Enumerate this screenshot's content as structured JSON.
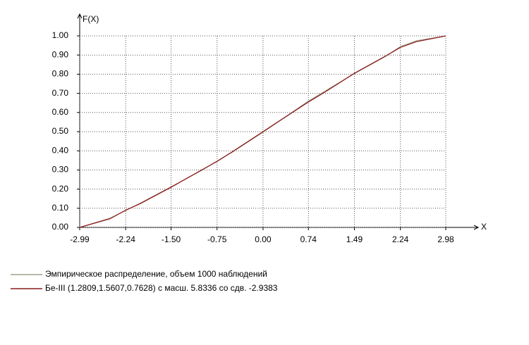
{
  "chart_data": {
    "type": "line",
    "ylabel": "F(X)",
    "xlabel": "X",
    "x": [
      -2.99,
      -2.5,
      -2.24,
      -2,
      -1.5,
      -1,
      -0.75,
      -0.5,
      0,
      0.5,
      0.74,
      1,
      1.49,
      2,
      2.24,
      2.5,
      2.98
    ],
    "series": [
      {
        "name": "Эмпирическое распределение, объем 1000 наблюдений",
        "color": "#9aa38c",
        "values": [
          0,
          0.048,
          0.088,
          0.127,
          0.212,
          0.298,
          0.347,
          0.393,
          0.497,
          0.607,
          0.66,
          0.71,
          0.803,
          0.893,
          0.945,
          0.975,
          1.0
        ]
      },
      {
        "name": "Бе-III (1.2809,1.5607,0.7628) с масш. 5.8336 со сдв. -2.9383",
        "color": "#8b1a1a",
        "values": [
          0,
          0.045,
          0.09,
          0.125,
          0.21,
          0.3,
          0.345,
          0.395,
          0.5,
          0.605,
          0.655,
          0.705,
          0.805,
          0.895,
          0.94,
          0.97,
          1.0
        ]
      }
    ],
    "xlim": [
      -2.99,
      2.98
    ],
    "xticks": [
      -2.99,
      -2.24,
      {
        "value": -1.5,
        "label": "-1.50"
      },
      -0.75,
      {
        "value": 0,
        "label": "0.00"
      },
      0.74,
      1.49,
      2.24,
      2.98
    ],
    "ylim": [
      0,
      1
    ],
    "yticks": [
      {
        "value": 0,
        "label": "0.00"
      },
      {
        "value": 0.1,
        "label": "0.10"
      },
      {
        "value": 0.2,
        "label": "0.20"
      },
      {
        "value": 0.3,
        "label": "0.30"
      },
      {
        "value": 0.4,
        "label": "0.40"
      },
      {
        "value": 0.5,
        "label": "0.50"
      },
      {
        "value": 0.6,
        "label": "0.60"
      },
      {
        "value": 0.7,
        "label": "0.70"
      },
      {
        "value": 0.8,
        "label": "0.80"
      },
      {
        "value": 0.9,
        "label": "0.90"
      },
      {
        "value": 1,
        "label": "1.00"
      }
    ],
    "grid": true
  }
}
